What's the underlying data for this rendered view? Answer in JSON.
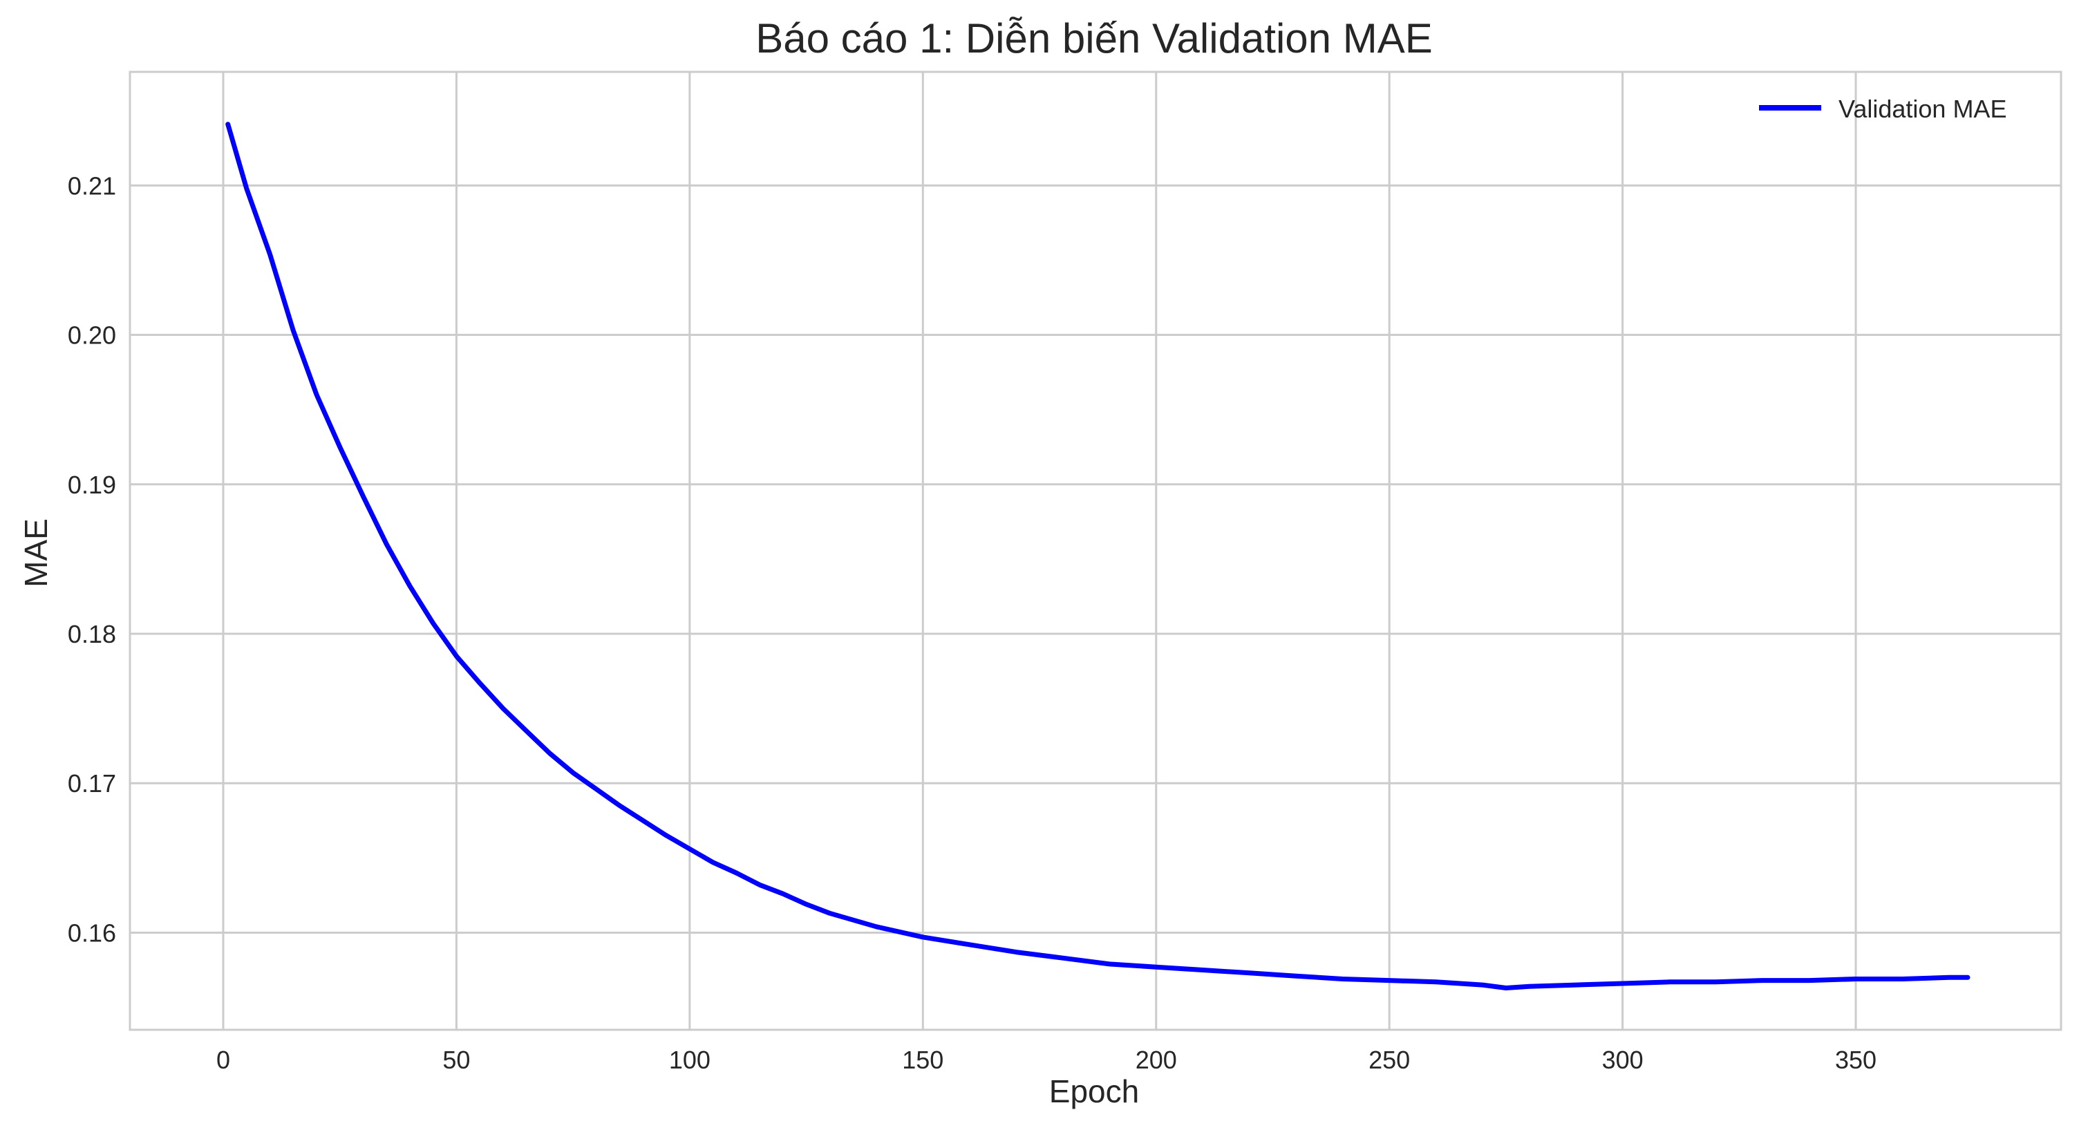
{
  "chart_data": {
    "type": "line",
    "title": "Báo cáo 1: Diễn biến Validation MAE",
    "xlabel": "Epoch",
    "ylabel": "MAE",
    "xlim": [
      -20,
      394
    ],
    "ylim": [
      0.1535,
      0.2176
    ],
    "x_ticks": [
      0,
      50,
      100,
      150,
      200,
      250,
      300,
      350
    ],
    "x_tick_labels": [
      "0",
      "50",
      "100",
      "150",
      "200",
      "250",
      "300",
      "350"
    ],
    "y_ticks": [
      0.16,
      0.17,
      0.18,
      0.19,
      0.2,
      0.21
    ],
    "y_tick_labels": [
      "0.16",
      "0.17",
      "0.18",
      "0.19",
      "0.20",
      "0.21"
    ],
    "grid": true,
    "legend_position": "top-right",
    "series": [
      {
        "name": "Validation MAE",
        "color": "#0000ff",
        "x": [
          1,
          5,
          10,
          15,
          20,
          25,
          30,
          35,
          40,
          45,
          50,
          55,
          60,
          65,
          70,
          75,
          80,
          85,
          90,
          95,
          100,
          105,
          110,
          115,
          120,
          125,
          130,
          140,
          150,
          160,
          170,
          180,
          190,
          200,
          210,
          220,
          230,
          240,
          250,
          260,
          270,
          275,
          280,
          290,
          300,
          310,
          320,
          330,
          340,
          350,
          360,
          370,
          374
        ],
        "y": [
          0.2141,
          0.2098,
          0.2054,
          0.2003,
          0.196,
          0.1925,
          0.1892,
          0.186,
          0.1832,
          0.1807,
          0.1785,
          0.1767,
          0.175,
          0.1735,
          0.172,
          0.1707,
          0.1696,
          0.1685,
          0.1675,
          0.1665,
          0.1656,
          0.1647,
          0.164,
          0.1632,
          0.1626,
          0.1619,
          0.1613,
          0.1604,
          0.1597,
          0.1592,
          0.1587,
          0.1583,
          0.1579,
          0.1577,
          0.1575,
          0.1573,
          0.1571,
          0.1569,
          0.1568,
          0.1567,
          0.1565,
          0.1563,
          0.1564,
          0.1565,
          0.1566,
          0.1567,
          0.1567,
          0.1568,
          0.1568,
          0.1569,
          0.1569,
          0.157,
          0.157
        ]
      }
    ]
  }
}
